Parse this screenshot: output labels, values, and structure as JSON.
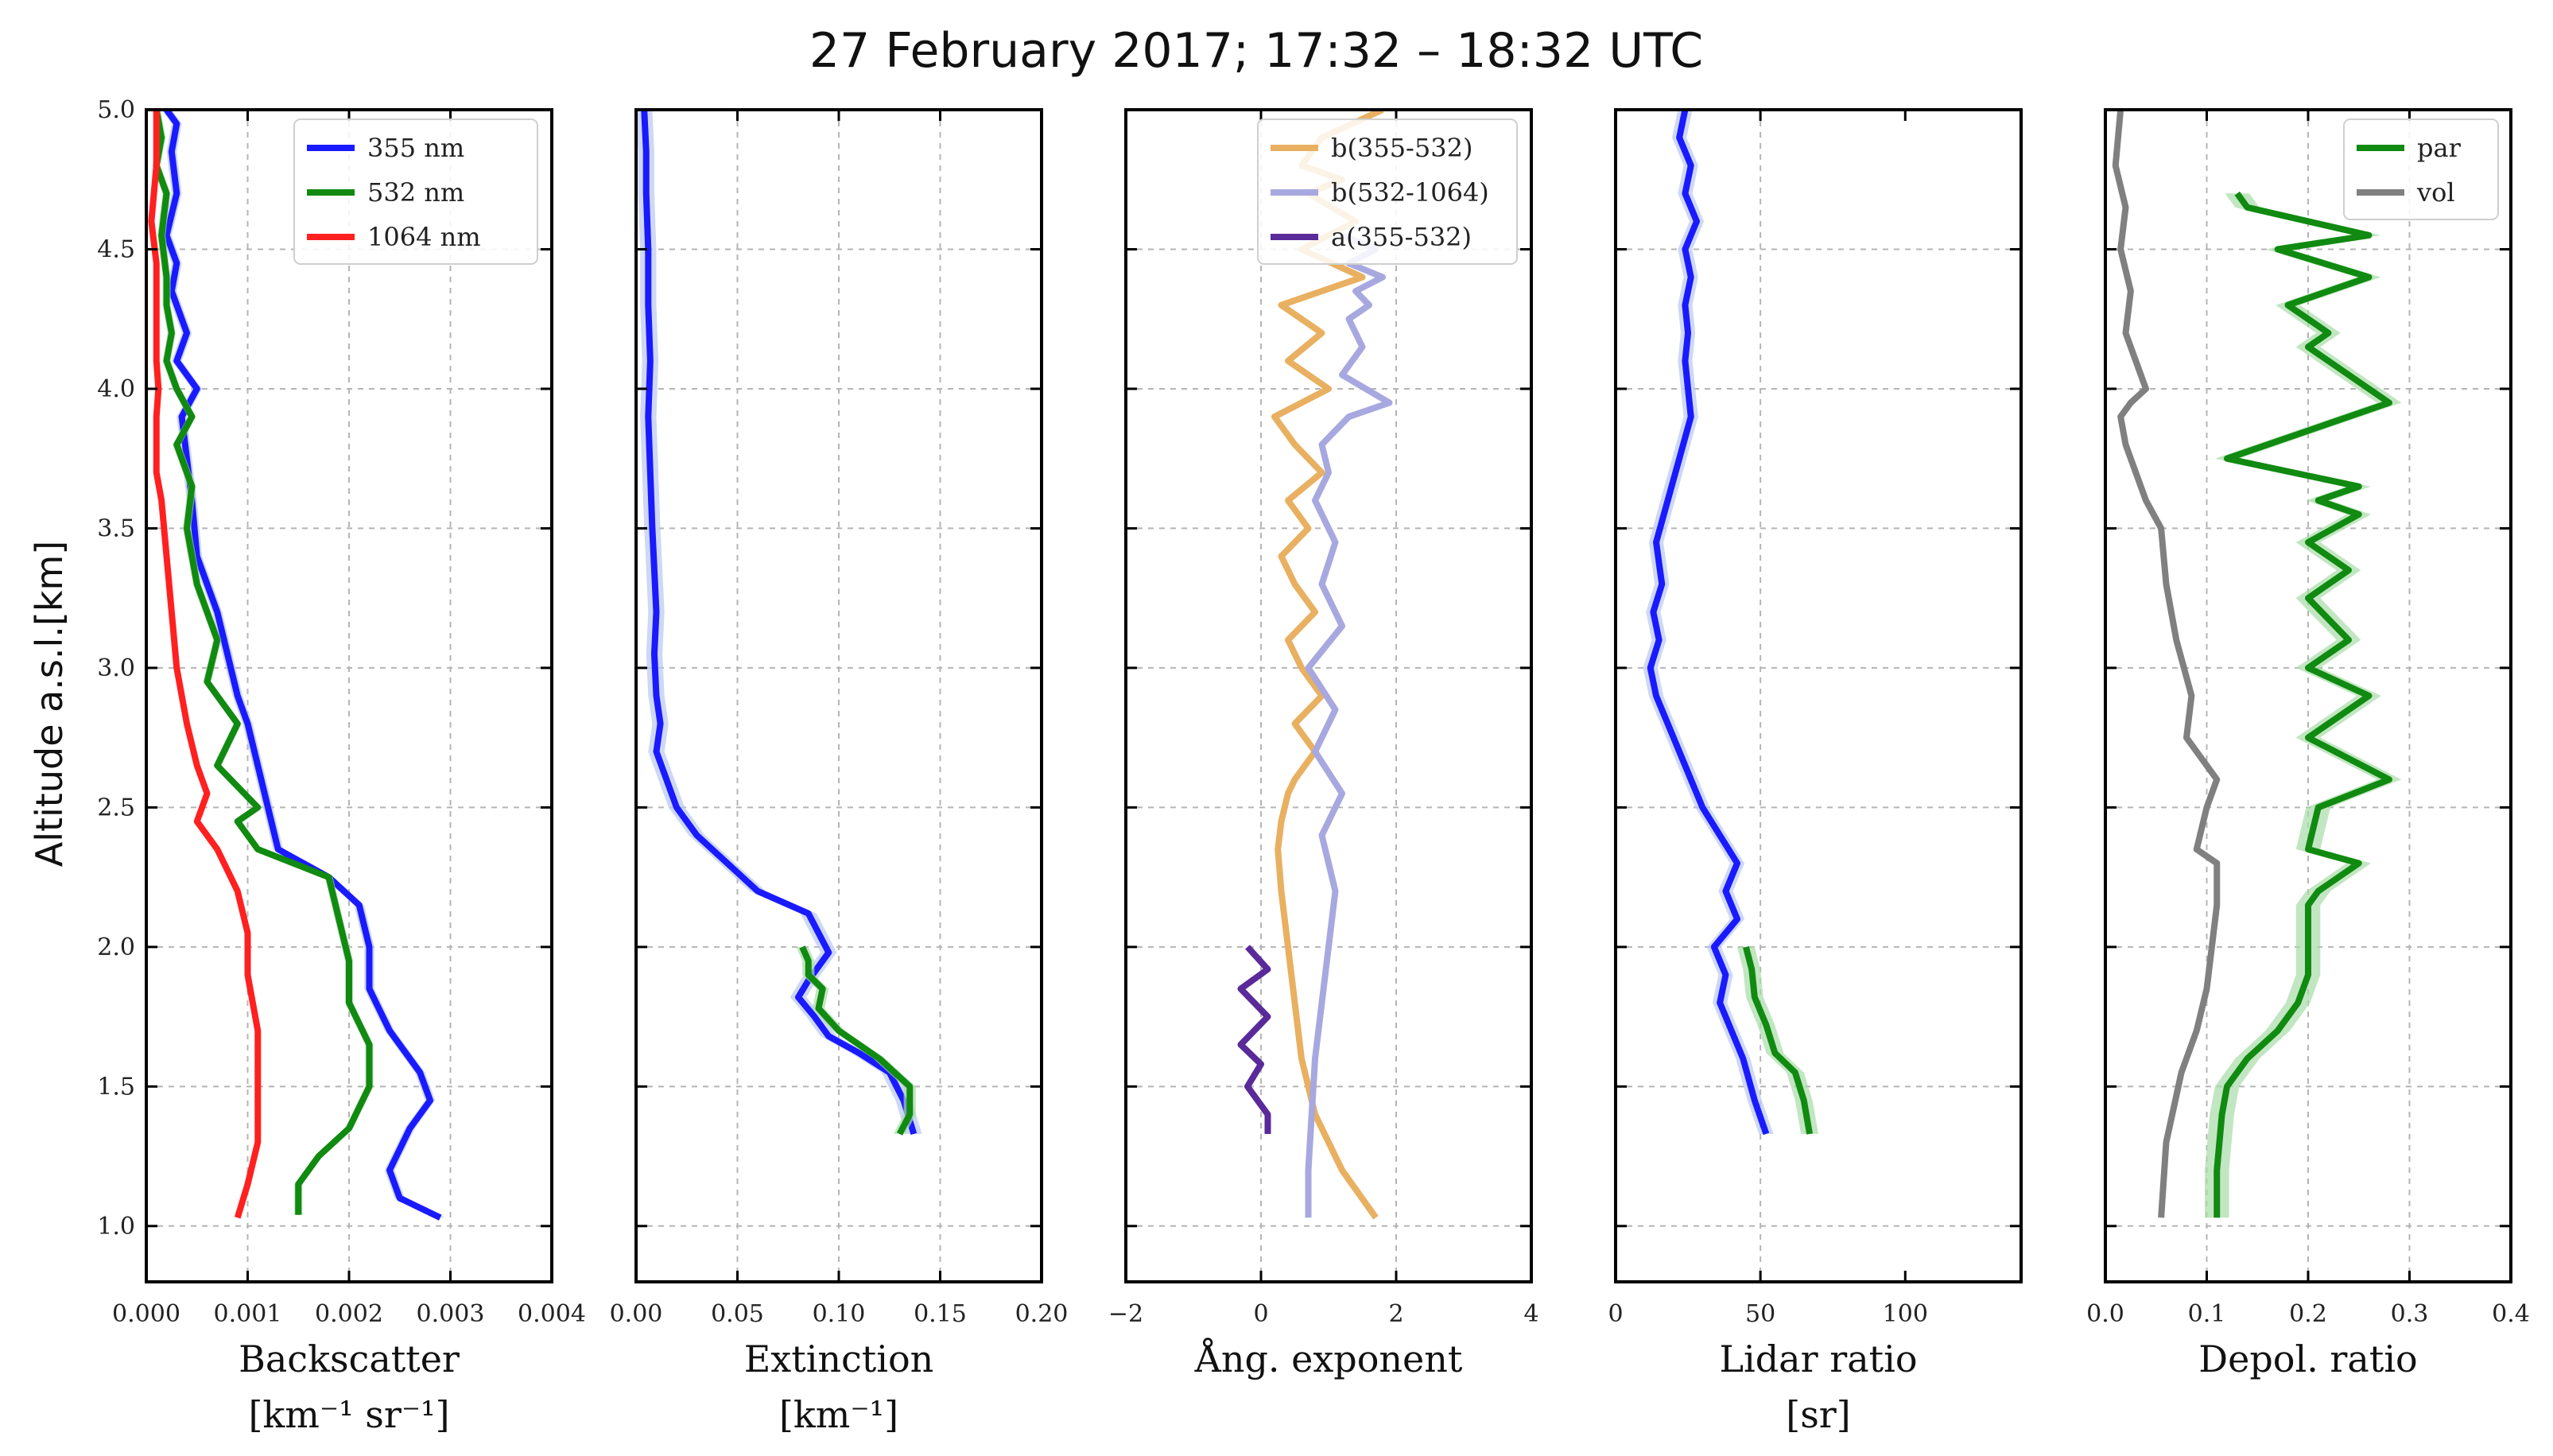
{
  "title": "27 February 2017; 17:32 – 18:32 UTC",
  "ylabel": "Altitude a.s.l.[km]",
  "ylim": [
    0.8,
    5.0
  ],
  "yticks": [
    1.0,
    1.5,
    2.0,
    2.5,
    3.0,
    3.5,
    4.0,
    4.5,
    5.0
  ],
  "yticklabels": [
    "1.0",
    "1.5",
    "2.0",
    "2.5",
    "3.0",
    "3.5",
    "4.0",
    "4.5",
    "5.0"
  ],
  "colors": {
    "b355": "#1a1aff",
    "b532": "#108a10",
    "b1064": "#ff2020",
    "ang_b355_532": "#e8b060",
    "ang_b532_1064": "#a8a8e0",
    "ang_a355_532": "#5a2a9a",
    "par": "#108a10",
    "vol": "#808080",
    "band_blue": "#b8c8f0",
    "band_green": "#a8dca8"
  },
  "chart_data": [
    {
      "type": "line",
      "id": "backscatter",
      "xlabel_line1": "Backscatter",
      "xlabel_line2": "[km⁻¹ sr⁻¹]",
      "xlim": [
        0.0,
        0.004
      ],
      "xticks": [
        0.0,
        0.001,
        0.002,
        0.003,
        0.004
      ],
      "xticklabels": [
        "0.000",
        "0.001",
        "0.002",
        "0.003",
        "0.004"
      ],
      "legend_position": "top-right",
      "series": [
        {
          "name": "355 nm",
          "color_key": "b355",
          "band": 5e-05,
          "x": [
            0.0029,
            0.0025,
            0.0024,
            0.0026,
            0.0028,
            0.0027,
            0.0024,
            0.0022,
            0.0022,
            0.0021,
            0.0018,
            0.0013,
            0.0012,
            0.0011,
            0.001,
            0.0009,
            0.0008,
            0.0007,
            0.0005,
            0.00045,
            0.0004,
            0.00035,
            0.0005,
            0.0003,
            0.0004,
            0.00025,
            0.0003,
            0.0002,
            0.0003,
            0.00025,
            0.0003,
            0.0002
          ],
          "y": [
            1.03,
            1.1,
            1.2,
            1.35,
            1.45,
            1.55,
            1.7,
            1.85,
            2.0,
            2.15,
            2.25,
            2.35,
            2.5,
            2.65,
            2.8,
            2.9,
            3.05,
            3.2,
            3.4,
            3.6,
            3.75,
            3.9,
            4.0,
            4.1,
            4.2,
            4.35,
            4.45,
            4.55,
            4.7,
            4.85,
            4.95,
            5.0
          ]
        },
        {
          "name": "532 nm",
          "color_key": "b532",
          "band": 4e-05,
          "x": [
            0.0015,
            0.0015,
            0.0017,
            0.002,
            0.0022,
            0.0022,
            0.002,
            0.002,
            0.0019,
            0.0018,
            0.0011,
            0.0009,
            0.0011,
            0.0007,
            0.0009,
            0.0006,
            0.0007,
            0.0005,
            0.0004,
            0.00045,
            0.0003,
            0.00045,
            0.0003,
            0.0002,
            0.00025,
            0.0002,
            0.0002,
            0.00015,
            0.0002,
            0.0001,
            0.00015,
            0.0001
          ],
          "y": [
            1.04,
            1.15,
            1.25,
            1.35,
            1.5,
            1.65,
            1.8,
            1.95,
            2.1,
            2.25,
            2.35,
            2.45,
            2.5,
            2.65,
            2.8,
            2.95,
            3.1,
            3.3,
            3.5,
            3.65,
            3.8,
            3.9,
            4.0,
            4.1,
            4.2,
            4.3,
            4.4,
            4.55,
            4.7,
            4.8,
            4.9,
            5.0
          ]
        },
        {
          "name": "1064 nm",
          "color_key": "b1064",
          "band": 0.0,
          "x": [
            0.0009,
            0.001,
            0.0011,
            0.0011,
            0.0011,
            0.001,
            0.001,
            0.0009,
            0.0007,
            0.0005,
            0.0006,
            0.0005,
            0.0004,
            0.0003,
            0.00025,
            0.0002,
            0.00015,
            0.0001,
            0.0001,
            0.0001,
            0.00012,
            0.0001,
            0.0001,
            0.0001,
            0.0001,
            5e-05,
            0.0001,
            0.0001
          ],
          "y": [
            1.03,
            1.15,
            1.3,
            1.5,
            1.7,
            1.9,
            2.05,
            2.2,
            2.35,
            2.45,
            2.55,
            2.65,
            2.8,
            3.0,
            3.2,
            3.4,
            3.6,
            3.7,
            3.8,
            3.9,
            4.0,
            4.1,
            4.2,
            4.3,
            4.45,
            4.6,
            4.8,
            5.0
          ]
        }
      ]
    },
    {
      "type": "line",
      "id": "extinction",
      "xlabel_line1": "Extinction",
      "xlabel_line2": "[km⁻¹]",
      "xlim": [
        0.0,
        0.2
      ],
      "xticks": [
        0.0,
        0.05,
        0.1,
        0.15,
        0.2
      ],
      "xticklabels": [
        "0.00",
        "0.05",
        "0.10",
        "0.15",
        "0.20"
      ],
      "series": [
        {
          "name": "355 nm",
          "color_key": "b355",
          "band": 0.004,
          "x": [
            0.137,
            0.132,
            0.125,
            0.11,
            0.095,
            0.088,
            0.08,
            0.085,
            0.095,
            0.09,
            0.085,
            0.06,
            0.045,
            0.03,
            0.02,
            0.015,
            0.01,
            0.012,
            0.01,
            0.009,
            0.01,
            0.008,
            0.007,
            0.006,
            0.007,
            0.006,
            0.006,
            0.005,
            0.005,
            0.004
          ],
          "y": [
            1.33,
            1.45,
            1.55,
            1.62,
            1.68,
            1.75,
            1.82,
            1.88,
            1.98,
            2.05,
            2.12,
            2.2,
            2.3,
            2.4,
            2.5,
            2.6,
            2.7,
            2.8,
            2.9,
            3.05,
            3.2,
            3.5,
            3.7,
            3.9,
            4.1,
            4.3,
            4.5,
            4.7,
            4.85,
            5.0
          ]
        },
        {
          "name": "532 nm",
          "color_key": "b532",
          "band": 0.003,
          "x": [
            0.13,
            0.135,
            0.135,
            0.12,
            0.1,
            0.09,
            0.092,
            0.085,
            0.085,
            0.082
          ],
          "y": [
            1.33,
            1.4,
            1.5,
            1.6,
            1.7,
            1.78,
            1.85,
            1.9,
            1.95,
            2.0
          ]
        }
      ]
    },
    {
      "type": "line",
      "id": "angstrom",
      "xlabel_line1": "Ång. exponent",
      "xlabel_line2": "",
      "xlim": [
        -2,
        4
      ],
      "xticks": [
        -2,
        0,
        2,
        4
      ],
      "xticklabels": [
        "−2",
        "0",
        "2",
        "4"
      ],
      "legend_position": "top-right",
      "series": [
        {
          "name": "b(355-532)",
          "color_key": "ang_b355_532",
          "band": 0.0,
          "x": [
            1.7,
            1.2,
            0.8,
            0.6,
            0.5,
            0.4,
            0.3,
            0.25,
            0.3,
            0.4,
            0.5,
            0.8,
            0.5,
            0.9,
            0.6,
            0.4,
            0.8,
            0.5,
            0.3,
            0.7,
            0.4,
            0.9,
            0.5,
            0.2,
            1.0,
            0.4,
            0.9,
            0.3,
            1.5,
            0.6,
            1.4,
            0.7,
            1.2,
            0.6,
            0.9,
            1.8
          ],
          "y": [
            1.03,
            1.2,
            1.4,
            1.6,
            1.8,
            2.0,
            2.2,
            2.35,
            2.45,
            2.55,
            2.6,
            2.7,
            2.8,
            2.9,
            3.0,
            3.1,
            3.2,
            3.3,
            3.4,
            3.5,
            3.6,
            3.7,
            3.8,
            3.9,
            4.0,
            4.1,
            4.2,
            4.3,
            4.4,
            4.5,
            4.6,
            4.7,
            4.75,
            4.8,
            4.9,
            5.0
          ]
        },
        {
          "name": "b(532-1064)",
          "color_key": "ang_b532_1064",
          "band": 0.0,
          "x": [
            0.7,
            0.7,
            0.75,
            0.8,
            0.9,
            1.0,
            1.1,
            0.9,
            1.2,
            0.8,
            1.1,
            0.7,
            1.2,
            0.9,
            1.1,
            0.8,
            1.0,
            0.9,
            1.1,
            1.3,
            1.9,
            1.2,
            1.5,
            1.3,
            1.6,
            1.4,
            1.8,
            1.3,
            1.7,
            1.2
          ],
          "y": [
            1.03,
            1.2,
            1.4,
            1.6,
            1.8,
            2.0,
            2.2,
            2.4,
            2.55,
            2.7,
            2.85,
            3.0,
            3.15,
            3.3,
            3.45,
            3.6,
            3.7,
            3.8,
            3.85,
            3.9,
            3.95,
            4.05,
            4.15,
            4.25,
            4.3,
            4.35,
            4.4,
            4.45,
            4.5,
            4.55
          ]
        },
        {
          "name": "a(355-532)",
          "color_key": "ang_a355_532",
          "band": 0.0,
          "x": [
            0.1,
            0.1,
            -0.2,
            0.0,
            -0.3,
            0.1,
            -0.3,
            0.1,
            -0.2
          ],
          "y": [
            1.33,
            1.4,
            1.5,
            1.58,
            1.65,
            1.75,
            1.85,
            1.92,
            2.0
          ]
        }
      ]
    },
    {
      "type": "line",
      "id": "lidar_ratio",
      "xlabel_line1": "Lidar ratio",
      "xlabel_line2": "[sr]",
      "xlim": [
        0,
        140
      ],
      "xticks": [
        0,
        50,
        100
      ],
      "xticklabels": [
        "0",
        "50",
        "100"
      ],
      "series": [
        {
          "name": "355 nm",
          "color_key": "b355",
          "band": 2.5,
          "x": [
            52,
            48,
            44,
            40,
            36,
            38,
            34,
            42,
            38,
            42,
            36,
            30,
            26,
            22,
            18,
            14,
            12,
            15,
            13,
            16,
            14,
            18,
            22,
            26,
            25,
            24,
            25,
            24,
            26,
            24,
            28,
            24,
            26,
            22,
            24
          ],
          "y": [
            1.33,
            1.45,
            1.6,
            1.7,
            1.8,
            1.9,
            2.0,
            2.1,
            2.2,
            2.3,
            2.4,
            2.5,
            2.6,
            2.7,
            2.8,
            2.9,
            3.0,
            3.1,
            3.2,
            3.3,
            3.45,
            3.6,
            3.75,
            3.9,
            4.0,
            4.1,
            4.2,
            4.3,
            4.4,
            4.5,
            4.6,
            4.7,
            4.8,
            4.9,
            5.0
          ]
        },
        {
          "name": "532 nm",
          "color_key": "b532",
          "band": 3.0,
          "x": [
            67,
            65,
            62,
            55,
            52,
            48,
            47,
            45
          ],
          "y": [
            1.33,
            1.45,
            1.55,
            1.62,
            1.72,
            1.82,
            1.92,
            2.0
          ]
        }
      ]
    },
    {
      "type": "line",
      "id": "depol_ratio",
      "xlabel_line1": "Depol. ratio",
      "xlabel_line2": "",
      "xlim": [
        0.0,
        0.4
      ],
      "xticks": [
        0.0,
        0.1,
        0.2,
        0.3,
        0.4
      ],
      "xticklabels": [
        "0.0",
        "0.1",
        "0.2",
        "0.3",
        "0.4"
      ],
      "legend_position": "top-right",
      "series": [
        {
          "name": "par",
          "color_key": "par",
          "band": 0.012,
          "x": [
            0.11,
            0.11,
            0.115,
            0.12,
            0.14,
            0.17,
            0.19,
            0.2,
            0.2,
            0.2,
            0.21,
            0.25,
            0.2,
            0.21,
            0.28,
            0.2,
            0.26,
            0.2,
            0.24,
            0.2,
            0.24,
            0.2,
            0.25,
            0.21,
            0.25,
            0.12,
            0.28,
            0.2,
            0.22,
            0.18,
            0.26,
            0.17,
            0.26,
            0.14,
            0.13
          ],
          "y": [
            1.03,
            1.2,
            1.4,
            1.5,
            1.6,
            1.7,
            1.8,
            1.9,
            2.0,
            2.15,
            2.2,
            2.3,
            2.35,
            2.5,
            2.6,
            2.75,
            2.9,
            3.0,
            3.1,
            3.25,
            3.35,
            3.45,
            3.55,
            3.6,
            3.65,
            3.75,
            3.95,
            4.15,
            4.2,
            4.3,
            4.4,
            4.5,
            4.55,
            4.65,
            4.7
          ]
        },
        {
          "name": "vol",
          "color_key": "vol",
          "band": 0.0,
          "x": [
            0.055,
            0.06,
            0.075,
            0.09,
            0.1,
            0.105,
            0.11,
            0.11,
            0.09,
            0.1,
            0.11,
            0.09,
            0.08,
            0.085,
            0.07,
            0.06,
            0.055,
            0.04,
            0.03,
            0.02,
            0.015,
            0.025,
            0.04,
            0.03,
            0.02,
            0.025,
            0.015,
            0.02,
            0.01,
            0.015
          ],
          "y": [
            1.03,
            1.3,
            1.55,
            1.7,
            1.85,
            2.0,
            2.15,
            2.3,
            2.35,
            2.5,
            2.6,
            2.7,
            2.75,
            2.9,
            3.1,
            3.3,
            3.5,
            3.6,
            3.7,
            3.8,
            3.9,
            3.95,
            4.0,
            4.1,
            4.2,
            4.35,
            4.5,
            4.65,
            4.8,
            5.0
          ]
        }
      ]
    }
  ]
}
